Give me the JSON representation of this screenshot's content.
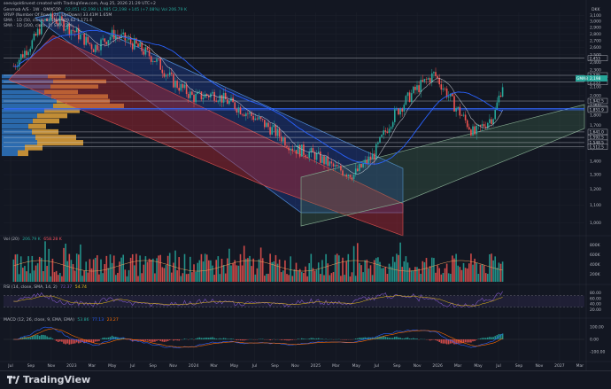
{
  "header": {
    "caption": "seevigoldinvest created with TradingView.com, Aug 25, 2026 21:29 UTC+2",
    "symbol_line": "Genmab A/S · 1W · OMXCOP",
    "ohlc_line": "O2,051 H2,198 L1,985 C2,198 +145 (+7.08%) Vol 206.79 K",
    "indicators": [
      "VRVP (Number Of Rows, 24, Up/Down)  33.41M  1.65M",
      "SMA · 1D (50, close, 0)  SMA  909.62 1,171.6",
      "SMA · 1D (200, close, 0)  SMA (20)"
    ],
    "currency": "DKK"
  },
  "price_axis": {
    "ticks": [
      "3,100",
      "3,000",
      "2,900",
      "2,800",
      "2,700",
      "2,600",
      "2,500",
      "2,400",
      "2,300",
      "2,200",
      "2,100",
      "2,000",
      "1,900",
      "1,800",
      "1,700",
      "1,600",
      "1,500",
      "1,400",
      "1,300",
      "1,200",
      "1,100",
      "1,000"
    ],
    "tick_values": [
      3100,
      3000,
      2900,
      2800,
      2700,
      2600,
      2500,
      2400,
      2300,
      2200,
      2100,
      2000,
      1900,
      1800,
      1700,
      1600,
      1500,
      1400,
      1300,
      1200,
      1100,
      1000
    ],
    "levels": [
      {
        "label": "2,453",
        "value": 2453,
        "color": "#d1d4dc"
      },
      {
        "label": "2,235",
        "value": 2235,
        "color": "#d1d4dc"
      },
      {
        "label": "2,153",
        "value": 2153,
        "color": "#d1d4dc"
      },
      {
        "label": "1,942.5",
        "value": 1942.5,
        "color": "#d1d4dc"
      },
      {
        "label": "1,865.5",
        "value": 1865.5,
        "color": "#d1d4dc"
      },
      {
        "label": "1,851.9",
        "value": 1851.9,
        "color": "#d1d4dc"
      },
      {
        "label": "1,641.0",
        "value": 1641,
        "color": "#d1d4dc"
      },
      {
        "label": "1,592.5",
        "value": 1592.5,
        "color": "#d1d4dc"
      },
      {
        "label": "1,548.5",
        "value": 1548.5,
        "color": "#d1d4dc"
      },
      {
        "label": "1,512.5",
        "value": 1512.5,
        "color": "#d1d4dc"
      }
    ],
    "last_price_tag": "GMAB",
    "last_price": "2,198"
  },
  "time_axis": {
    "labels": [
      "Jul",
      "Sep",
      "Nov",
      "2023",
      "Mar",
      "May",
      "Jul",
      "Sep",
      "Nov",
      "2024",
      "Mar",
      "May",
      "Jul",
      "Sep",
      "Nov",
      "2025",
      "Mar",
      "May",
      "Jul",
      "Sep",
      "Nov",
      "2026",
      "Mar",
      "May",
      "Jul",
      "Sep",
      "Nov",
      "2027",
      "Mar"
    ]
  },
  "volume_panel": {
    "label": "Vol (20)",
    "value1": "206.79 K",
    "value2": "658.28 K",
    "ticks": [
      "800K",
      "600K",
      "400K",
      "200K"
    ]
  },
  "rsi_panel": {
    "label": "RSI (14, close, SMA, 14, 2)",
    "value1": "72.37",
    "value2": "54.74",
    "ticks": [
      "80.00",
      "60.00",
      "40.00",
      "20.00"
    ],
    "upper": 70,
    "lower": 30
  },
  "macd_panel": {
    "label": "MACD (12, 26, close, 9, EMA, EMA)",
    "value1": "53.86",
    "value2": "77.13",
    "value3": "23.27",
    "ticks": [
      "100.00",
      "0.00",
      "-100.00"
    ]
  },
  "colors": {
    "bg": "#131722",
    "up": "#26a69a",
    "down": "#ef5350",
    "sma50": "#2962ff",
    "sma200": "#d1d4dc",
    "channel_blue": "#2962ff",
    "channel_red": "#b22833",
    "channel_green": "#4a7c59",
    "vp_up": "#2f77c2",
    "vp_down": "#e0a23a"
  },
  "footer": {
    "brand": "TradingView"
  },
  "chart_data": {
    "type": "candlestick",
    "title": "Genmab A/S · 1W · OMXCOP",
    "ylabel": "DKK",
    "ylim": [
      950,
      3150
    ],
    "path_points": [
      {
        "x": "2022-07",
        "y": 2350
      },
      {
        "x": "2022-09",
        "y": 2700
      },
      {
        "x": "2022-10",
        "y": 3000
      },
      {
        "x": "2022-11",
        "y": 3050
      },
      {
        "x": "2023-01",
        "y": 2850
      },
      {
        "x": "2023-03",
        "y": 2600
      },
      {
        "x": "2023-05",
        "y": 2800
      },
      {
        "x": "2023-07",
        "y": 2650
      },
      {
        "x": "2023-09",
        "y": 2450
      },
      {
        "x": "2023-11",
        "y": 2150
      },
      {
        "x": "2024-01",
        "y": 1980
      },
      {
        "x": "2024-03",
        "y": 2020
      },
      {
        "x": "2024-05",
        "y": 1900
      },
      {
        "x": "2024-07",
        "y": 1780
      },
      {
        "x": "2024-09",
        "y": 1650
      },
      {
        "x": "2024-11",
        "y": 1500
      },
      {
        "x": "2025-01",
        "y": 1450
      },
      {
        "x": "2025-03",
        "y": 1350
      },
      {
        "x": "2025-05",
        "y": 1300
      },
      {
        "x": "2025-07",
        "y": 1450
      },
      {
        "x": "2025-09",
        "y": 1800
      },
      {
        "x": "2025-11",
        "y": 2050
      },
      {
        "x": "2026-01",
        "y": 2250
      },
      {
        "x": "2026-03",
        "y": 1900
      },
      {
        "x": "2026-05",
        "y": 1620
      },
      {
        "x": "2026-07",
        "y": 1800
      },
      {
        "x": "2026-08",
        "y": 2198
      }
    ],
    "last": {
      "open": 2051,
      "high": 2198,
      "low": 1985,
      "close": 2198,
      "change": 145,
      "change_pct": 7.08
    }
  }
}
